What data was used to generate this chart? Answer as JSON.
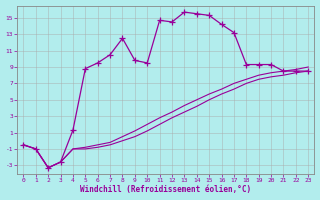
{
  "xlabel": "Windchill (Refroidissement éolien,°C)",
  "bg_color": "#b2eded",
  "line_color": "#990099",
  "xlim": [
    -0.5,
    23.5
  ],
  "ylim": [
    -4,
    16.5
  ],
  "yticks": [
    -3,
    -1,
    1,
    3,
    5,
    7,
    9,
    11,
    13,
    15
  ],
  "xticks": [
    0,
    1,
    2,
    3,
    4,
    5,
    6,
    7,
    8,
    9,
    10,
    11,
    12,
    13,
    14,
    15,
    16,
    17,
    18,
    19,
    20,
    21,
    22,
    23
  ],
  "series1_x": [
    0,
    1,
    2,
    3,
    4,
    5,
    6,
    7,
    8,
    9,
    10,
    11,
    12,
    13,
    14,
    15,
    16,
    17,
    18,
    19,
    20,
    21,
    22,
    23
  ],
  "series1_y": [
    -0.5,
    -1.0,
    -3.3,
    -2.6,
    1.3,
    8.8,
    9.5,
    10.5,
    12.5,
    9.8,
    9.5,
    14.7,
    14.5,
    15.7,
    15.5,
    15.3,
    14.2,
    13.2,
    9.3,
    9.3,
    9.3,
    8.5,
    8.5,
    8.5
  ],
  "series2_x": [
    0,
    1,
    2,
    3,
    4,
    5,
    6,
    7,
    8,
    9,
    10,
    11,
    12,
    13,
    14,
    15,
    16,
    17,
    18,
    19,
    20,
    21,
    22,
    23
  ],
  "series2_y": [
    -0.5,
    -1.0,
    -3.3,
    -2.6,
    -1.0,
    -1.0,
    -0.8,
    -0.5,
    0.0,
    0.5,
    1.2,
    2.0,
    2.8,
    3.5,
    4.2,
    5.0,
    5.7,
    6.3,
    7.0,
    7.5,
    7.8,
    8.0,
    8.3,
    8.5
  ],
  "series3_x": [
    0,
    1,
    2,
    3,
    4,
    5,
    6,
    7,
    8,
    9,
    10,
    11,
    12,
    13,
    14,
    15,
    16,
    17,
    18,
    19,
    20,
    21,
    22,
    23
  ],
  "series3_y": [
    -0.5,
    -1.0,
    -3.3,
    -2.6,
    -1.0,
    -0.8,
    -0.5,
    -0.2,
    0.5,
    1.2,
    2.0,
    2.8,
    3.5,
    4.3,
    5.0,
    5.7,
    6.3,
    7.0,
    7.5,
    8.0,
    8.3,
    8.5,
    8.7,
    9.0
  ]
}
